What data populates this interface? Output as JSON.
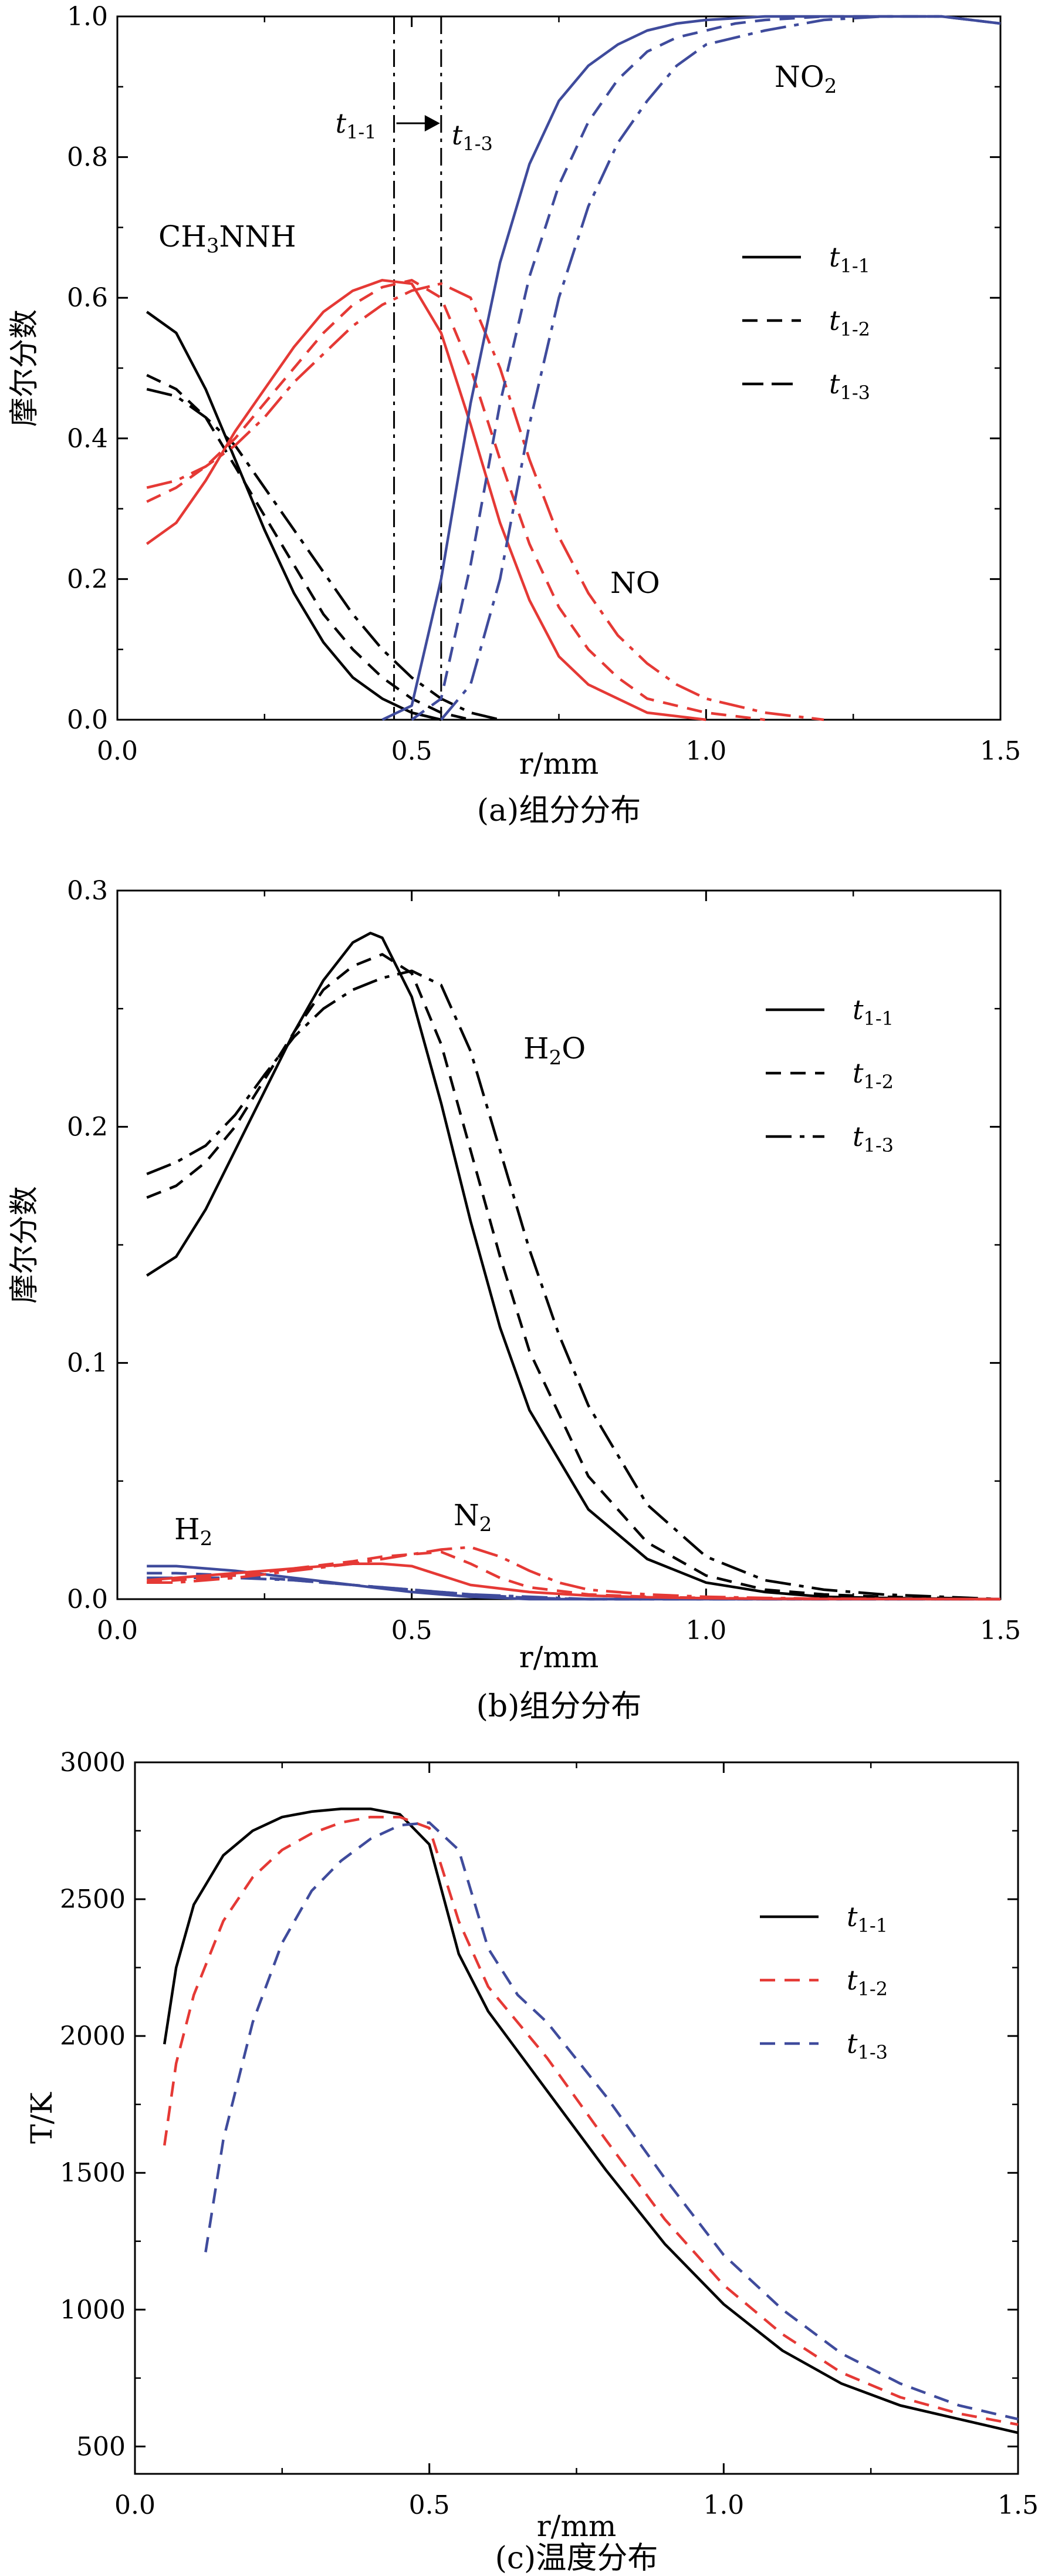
{
  "chart_data": [
    {
      "type": "line",
      "panel": "a",
      "caption": "(a)组分分布",
      "xlabel": "r/mm",
      "ylabel": "摩尔分数",
      "xlim": [
        0.0,
        1.5
      ],
      "ylim": [
        0.0,
        1.0
      ],
      "xticks": [
        "0.0",
        "0.5",
        "1.0",
        "1.5"
      ],
      "yticks": [
        "0.0",
        "0.2",
        "0.4",
        "0.6",
        "0.8",
        "1.0"
      ],
      "legend": [
        "t1-1",
        "t1-2",
        "t1-3"
      ],
      "legend_position": "right",
      "annotations": [
        "CH3NNH",
        "NO",
        "NO2",
        "t1-1",
        "t1-3"
      ],
      "markers_x": [
        0.47,
        0.55
      ],
      "series": [
        {
          "name": "CH3NNH t1-1",
          "color": "#000000",
          "style": "solid",
          "x": [
            0.05,
            0.1,
            0.15,
            0.2,
            0.25,
            0.3,
            0.35,
            0.4,
            0.45,
            0.5,
            0.55
          ],
          "y": [
            0.58,
            0.55,
            0.47,
            0.37,
            0.27,
            0.18,
            0.11,
            0.06,
            0.03,
            0.01,
            0.0
          ]
        },
        {
          "name": "CH3NNH t1-2",
          "color": "#000000",
          "style": "dashed",
          "x": [
            0.05,
            0.1,
            0.15,
            0.2,
            0.25,
            0.3,
            0.35,
            0.4,
            0.45,
            0.5,
            0.55,
            0.6
          ],
          "y": [
            0.49,
            0.47,
            0.43,
            0.36,
            0.29,
            0.22,
            0.15,
            0.1,
            0.06,
            0.03,
            0.01,
            0.0
          ]
        },
        {
          "name": "CH3NNH t1-3",
          "color": "#000000",
          "style": "dashdot",
          "x": [
            0.05,
            0.1,
            0.15,
            0.2,
            0.25,
            0.3,
            0.35,
            0.4,
            0.45,
            0.5,
            0.55,
            0.6,
            0.65
          ],
          "y": [
            0.47,
            0.46,
            0.43,
            0.39,
            0.33,
            0.27,
            0.21,
            0.15,
            0.1,
            0.06,
            0.03,
            0.01,
            0.0
          ]
        },
        {
          "name": "NO t1-1",
          "color": "#e53935",
          "style": "solid",
          "x": [
            0.05,
            0.1,
            0.15,
            0.2,
            0.25,
            0.3,
            0.35,
            0.4,
            0.45,
            0.5,
            0.55,
            0.6,
            0.65,
            0.7,
            0.75,
            0.8,
            0.9,
            1.0
          ],
          "y": [
            0.25,
            0.28,
            0.34,
            0.41,
            0.47,
            0.53,
            0.58,
            0.61,
            0.625,
            0.62,
            0.55,
            0.42,
            0.28,
            0.17,
            0.09,
            0.05,
            0.01,
            0.0
          ]
        },
        {
          "name": "NO t1-2",
          "color": "#e53935",
          "style": "dashed",
          "x": [
            0.05,
            0.1,
            0.15,
            0.2,
            0.25,
            0.3,
            0.35,
            0.4,
            0.45,
            0.5,
            0.55,
            0.6,
            0.65,
            0.7,
            0.75,
            0.8,
            0.85,
            0.9,
            1.0,
            1.1
          ],
          "y": [
            0.31,
            0.33,
            0.36,
            0.4,
            0.45,
            0.5,
            0.55,
            0.59,
            0.615,
            0.625,
            0.6,
            0.5,
            0.37,
            0.25,
            0.16,
            0.1,
            0.06,
            0.03,
            0.01,
            0.0
          ]
        },
        {
          "name": "NO t1-3",
          "color": "#e53935",
          "style": "dashdot",
          "x": [
            0.05,
            0.1,
            0.15,
            0.2,
            0.25,
            0.3,
            0.35,
            0.4,
            0.45,
            0.5,
            0.55,
            0.6,
            0.65,
            0.7,
            0.75,
            0.8,
            0.85,
            0.9,
            0.95,
            1.0,
            1.1,
            1.2
          ],
          "y": [
            0.33,
            0.34,
            0.36,
            0.39,
            0.43,
            0.48,
            0.52,
            0.56,
            0.59,
            0.61,
            0.62,
            0.6,
            0.5,
            0.37,
            0.26,
            0.18,
            0.12,
            0.08,
            0.05,
            0.03,
            0.01,
            0.0
          ]
        },
        {
          "name": "NO2 t1-1",
          "color": "#3f4b9c",
          "style": "solid",
          "x": [
            0.45,
            0.5,
            0.55,
            0.6,
            0.65,
            0.7,
            0.75,
            0.8,
            0.85,
            0.9,
            0.95,
            1.0,
            1.1,
            1.2,
            1.3,
            1.4,
            1.5
          ],
          "y": [
            0.0,
            0.02,
            0.2,
            0.45,
            0.65,
            0.79,
            0.88,
            0.93,
            0.96,
            0.98,
            0.99,
            0.995,
            1.0,
            1.0,
            1.0,
            1.0,
            0.99
          ]
        },
        {
          "name": "NO2 t1-2",
          "color": "#3f4b9c",
          "style": "dashed",
          "x": [
            0.5,
            0.55,
            0.6,
            0.65,
            0.7,
            0.75,
            0.8,
            0.85,
            0.9,
            0.95,
            1.0,
            1.05,
            1.1,
            1.2,
            1.3,
            1.4,
            1.5
          ],
          "y": [
            0.0,
            0.03,
            0.22,
            0.45,
            0.63,
            0.76,
            0.85,
            0.91,
            0.95,
            0.97,
            0.98,
            0.99,
            0.995,
            1.0,
            1.0,
            1.0,
            0.99
          ]
        },
        {
          "name": "NO2 t1-3",
          "color": "#3f4b9c",
          "style": "dashdot",
          "x": [
            0.55,
            0.6,
            0.65,
            0.7,
            0.75,
            0.8,
            0.85,
            0.9,
            0.95,
            1.0,
            1.05,
            1.1,
            1.2,
            1.3,
            1.4,
            1.5
          ],
          "y": [
            0.0,
            0.05,
            0.2,
            0.42,
            0.6,
            0.73,
            0.82,
            0.88,
            0.93,
            0.96,
            0.97,
            0.98,
            0.995,
            1.0,
            1.0,
            0.99
          ]
        }
      ]
    },
    {
      "type": "line",
      "panel": "b",
      "caption": "(b)组分分布",
      "xlabel": "r/mm",
      "ylabel": "摩尔分数",
      "xlim": [
        0.0,
        1.5
      ],
      "ylim": [
        0.0,
        0.3
      ],
      "xticks": [
        "0.0",
        "0.5",
        "1.0",
        "1.5"
      ],
      "yticks": [
        "0.0",
        "0.1",
        "0.2",
        "0.3"
      ],
      "legend": [
        "t1-1",
        "t1-2",
        "t1-3"
      ],
      "legend_position": "right",
      "annotations": [
        "H2O",
        "H2",
        "N2"
      ],
      "series": [
        {
          "name": "H2O t1-1",
          "color": "#000000",
          "style": "solid",
          "x": [
            0.05,
            0.1,
            0.15,
            0.2,
            0.25,
            0.3,
            0.35,
            0.4,
            0.43,
            0.45,
            0.5,
            0.55,
            0.6,
            0.65,
            0.7,
            0.8,
            0.9,
            1.0,
            1.1,
            1.2,
            1.3,
            1.4,
            1.5
          ],
          "y": [
            0.137,
            0.145,
            0.165,
            0.19,
            0.215,
            0.24,
            0.262,
            0.278,
            0.282,
            0.28,
            0.255,
            0.21,
            0.16,
            0.115,
            0.08,
            0.038,
            0.017,
            0.007,
            0.003,
            0.001,
            0.0005,
            0.0002,
            0.0
          ]
        },
        {
          "name": "H2O t1-2",
          "color": "#000000",
          "style": "dashed",
          "x": [
            0.05,
            0.1,
            0.15,
            0.2,
            0.25,
            0.3,
            0.35,
            0.4,
            0.45,
            0.5,
            0.55,
            0.6,
            0.65,
            0.7,
            0.8,
            0.9,
            1.0,
            1.1,
            1.2,
            1.3,
            1.4,
            1.5
          ],
          "y": [
            0.17,
            0.175,
            0.185,
            0.2,
            0.22,
            0.24,
            0.258,
            0.268,
            0.273,
            0.265,
            0.235,
            0.19,
            0.145,
            0.105,
            0.052,
            0.024,
            0.01,
            0.004,
            0.002,
            0.001,
            0.0005,
            0.0
          ]
        },
        {
          "name": "H2O t1-3",
          "color": "#000000",
          "style": "dashdot",
          "x": [
            0.05,
            0.1,
            0.15,
            0.2,
            0.25,
            0.3,
            0.35,
            0.4,
            0.45,
            0.5,
            0.55,
            0.6,
            0.65,
            0.7,
            0.75,
            0.8,
            0.9,
            1.0,
            1.1,
            1.2,
            1.3,
            1.4,
            1.5
          ],
          "y": [
            0.18,
            0.185,
            0.192,
            0.205,
            0.222,
            0.238,
            0.25,
            0.258,
            0.263,
            0.266,
            0.26,
            0.232,
            0.19,
            0.148,
            0.112,
            0.082,
            0.04,
            0.018,
            0.008,
            0.004,
            0.002,
            0.001,
            0.0
          ]
        },
        {
          "name": "H2 t1-1",
          "color": "#3f4b9c",
          "style": "solid",
          "x": [
            0.05,
            0.1,
            0.2,
            0.3,
            0.4,
            0.5,
            0.6,
            0.7,
            0.8,
            1.0,
            1.5
          ],
          "y": [
            0.014,
            0.014,
            0.012,
            0.009,
            0.006,
            0.003,
            0.001,
            0.0,
            0.0,
            0.0,
            0.0
          ]
        },
        {
          "name": "H2 t1-2",
          "color": "#3f4b9c",
          "style": "dashed",
          "x": [
            0.05,
            0.1,
            0.2,
            0.3,
            0.4,
            0.5,
            0.6,
            0.7,
            0.8,
            1.0,
            1.5
          ],
          "y": [
            0.011,
            0.011,
            0.01,
            0.008,
            0.006,
            0.004,
            0.002,
            0.0005,
            0.0,
            0.0,
            0.0
          ]
        },
        {
          "name": "H2 t1-3",
          "color": "#3f4b9c",
          "style": "dashdot",
          "x": [
            0.05,
            0.1,
            0.2,
            0.3,
            0.4,
            0.5,
            0.6,
            0.7,
            0.8,
            1.0,
            1.5
          ],
          "y": [
            0.009,
            0.009,
            0.009,
            0.008,
            0.006,
            0.004,
            0.002,
            0.001,
            0.0,
            0.0,
            0.0
          ]
        },
        {
          "name": "N2 t1-1",
          "color": "#e53935",
          "style": "solid",
          "x": [
            0.05,
            0.1,
            0.2,
            0.3,
            0.4,
            0.45,
            0.5,
            0.55,
            0.6,
            0.7,
            0.8,
            0.9,
            1.0,
            1.1,
            1.2,
            1.5
          ],
          "y": [
            0.008,
            0.009,
            0.011,
            0.013,
            0.015,
            0.015,
            0.014,
            0.01,
            0.006,
            0.003,
            0.0015,
            0.0008,
            0.0004,
            0.0002,
            0.0001,
            0.0
          ]
        },
        {
          "name": "N2 t1-2",
          "color": "#e53935",
          "style": "dashed",
          "x": [
            0.05,
            0.1,
            0.2,
            0.3,
            0.4,
            0.45,
            0.5,
            0.55,
            0.6,
            0.65,
            0.7,
            0.8,
            0.9,
            1.0,
            1.1,
            1.2,
            1.5
          ],
          "y": [
            0.007,
            0.008,
            0.01,
            0.013,
            0.016,
            0.018,
            0.019,
            0.02,
            0.015,
            0.009,
            0.005,
            0.002,
            0.001,
            0.0005,
            0.0002,
            0.0001,
            0.0
          ]
        },
        {
          "name": "N2 t1-3",
          "color": "#e53935",
          "style": "dashdot",
          "x": [
            0.05,
            0.1,
            0.2,
            0.3,
            0.4,
            0.45,
            0.5,
            0.55,
            0.6,
            0.65,
            0.7,
            0.75,
            0.8,
            0.9,
            1.0,
            1.1,
            1.2,
            1.5
          ],
          "y": [
            0.007,
            0.007,
            0.009,
            0.012,
            0.015,
            0.017,
            0.019,
            0.021,
            0.022,
            0.018,
            0.012,
            0.007,
            0.004,
            0.002,
            0.001,
            0.0005,
            0.0002,
            0.0
          ]
        }
      ]
    },
    {
      "type": "line",
      "panel": "c",
      "caption": "(c)温度分布",
      "xlabel": "r/mm",
      "ylabel": "T/K",
      "xlim": [
        0.0,
        1.5
      ],
      "ylim": [
        400,
        3000
      ],
      "xticks": [
        "0.0",
        "0.5",
        "1.0",
        "1.5"
      ],
      "yticks": [
        "500",
        "1000",
        "1500",
        "2000",
        "2500",
        "3000"
      ],
      "legend": [
        "t1-1",
        "t1-2",
        "t1-3"
      ],
      "legend_position": "right",
      "series": [
        {
          "name": "t1-1",
          "color": "#000000",
          "style": "solid",
          "x": [
            0.05,
            0.07,
            0.1,
            0.15,
            0.2,
            0.25,
            0.3,
            0.35,
            0.4,
            0.45,
            0.5,
            0.55,
            0.6,
            0.7,
            0.8,
            0.9,
            1.0,
            1.1,
            1.2,
            1.3,
            1.4,
            1.5
          ],
          "y": [
            1970,
            2250,
            2480,
            2660,
            2750,
            2800,
            2820,
            2830,
            2830,
            2810,
            2700,
            2300,
            2090,
            1800,
            1510,
            1240,
            1020,
            850,
            730,
            650,
            600,
            550
          ]
        },
        {
          "name": "t1-2",
          "color": "#e53935",
          "style": "dashed",
          "x": [
            0.05,
            0.07,
            0.1,
            0.15,
            0.2,
            0.25,
            0.3,
            0.35,
            0.4,
            0.45,
            0.5,
            0.55,
            0.6,
            0.7,
            0.8,
            0.9,
            1.0,
            1.1,
            1.2,
            1.3,
            1.4,
            1.5
          ],
          "y": [
            1600,
            1900,
            2150,
            2420,
            2580,
            2680,
            2740,
            2780,
            2800,
            2800,
            2760,
            2420,
            2180,
            1920,
            1620,
            1330,
            1090,
            910,
            770,
            680,
            620,
            580
          ]
        },
        {
          "name": "t1-3",
          "color": "#3f4b9c",
          "style": "dashed",
          "x": [
            0.12,
            0.15,
            0.2,
            0.25,
            0.3,
            0.35,
            0.4,
            0.45,
            0.5,
            0.55,
            0.6,
            0.65,
            0.7,
            0.8,
            0.9,
            1.0,
            1.1,
            1.2,
            1.3,
            1.4,
            1.5
          ],
          "y": [
            1210,
            1620,
            2050,
            2340,
            2530,
            2640,
            2720,
            2770,
            2780,
            2680,
            2320,
            2150,
            2050,
            1780,
            1480,
            1200,
            1000,
            840,
            730,
            650,
            600
          ]
        }
      ]
    }
  ]
}
